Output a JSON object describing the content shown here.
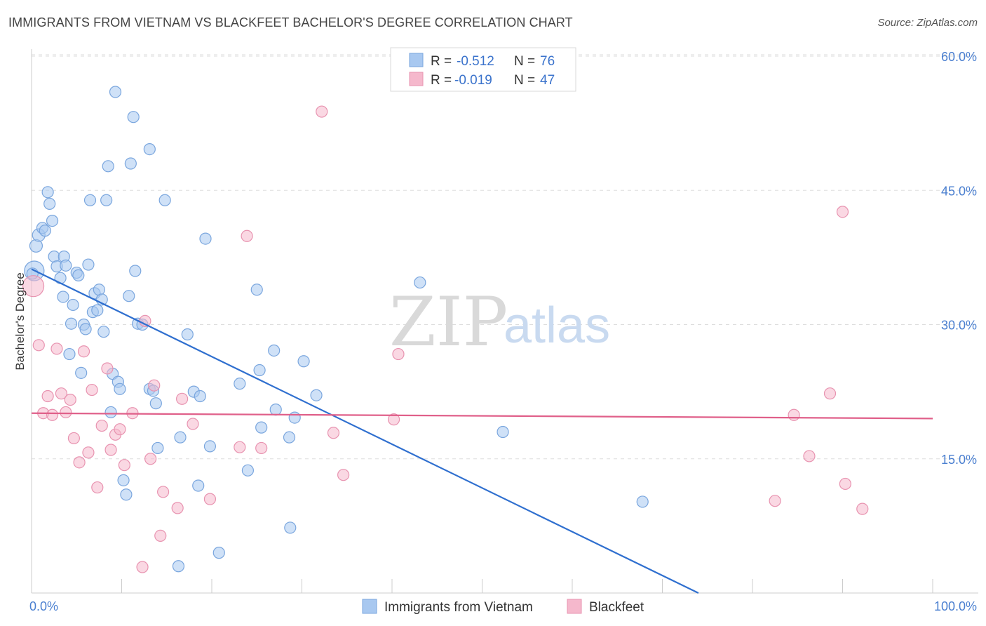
{
  "title": "IMMIGRANTS FROM VIETNAM VS BLACKFEET BACHELOR'S DEGREE CORRELATION CHART",
  "source": "Source: ZipAtlas.com",
  "watermark": {
    "zip": "ZIP",
    "atlas": "atlas"
  },
  "legend": {
    "rows": [
      {
        "r_label": "R =",
        "r_value": "-0.512",
        "n_label": "N =",
        "n_value": "76"
      },
      {
        "r_label": "R =",
        "r_value": "-0.019",
        "n_label": "N =",
        "n_value": "47"
      }
    ]
  },
  "colors": {
    "blue_fill": "#a8c8f0",
    "blue_stroke": "#7aa6de",
    "blue_line": "#2f6fcf",
    "pink_fill": "#f5b8cc",
    "pink_stroke": "#e893b0",
    "pink_line": "#e0608a",
    "grid": "#dddddd",
    "axis": "#cccccc"
  },
  "chart_data": {
    "type": "scatter",
    "title": "IMMIGRANTS FROM VIETNAM VS BLACKFEET BACHELOR'S DEGREE CORRELATION CHART",
    "xlabel": "",
    "ylabel": "Bachelor's Degree",
    "xlim": [
      0,
      100
    ],
    "ylim": [
      0,
      62
    ],
    "x_tick_labels": [
      "0.0%",
      "100.0%"
    ],
    "y_ticks": [
      15,
      30,
      45,
      60
    ],
    "y_tick_labels": [
      "15.0%",
      "30.0%",
      "45.0%",
      "60.0%"
    ],
    "grid": true,
    "legend_position": "top-center",
    "series": [
      {
        "name": "Immigrants from Vietnam",
        "color": "#a8c8f0",
        "trend": {
          "x": [
            0,
            74
          ],
          "y": [
            36.2,
            0
          ]
        },
        "points": [
          {
            "x": 0.3,
            "y": 36.0,
            "s": 28
          },
          {
            "x": 0.5,
            "y": 38.8,
            "s": 18
          },
          {
            "x": 0.8,
            "y": 40.0,
            "s": 18
          },
          {
            "x": 1.2,
            "y": 40.8,
            "s": 16
          },
          {
            "x": 1.5,
            "y": 40.5,
            "s": 16
          },
          {
            "x": 1.8,
            "y": 44.8,
            "s": 16
          },
          {
            "x": 2.0,
            "y": 43.5,
            "s": 16
          },
          {
            "x": 2.3,
            "y": 41.6,
            "s": 16
          },
          {
            "x": 2.5,
            "y": 37.6,
            "s": 16
          },
          {
            "x": 2.8,
            "y": 36.5,
            "s": 16
          },
          {
            "x": 3.2,
            "y": 35.2,
            "s": 16
          },
          {
            "x": 3.5,
            "y": 33.1,
            "s": 16
          },
          {
            "x": 3.6,
            "y": 37.6,
            "s": 16
          },
          {
            "x": 3.8,
            "y": 36.6,
            "s": 16
          },
          {
            "x": 4.2,
            "y": 26.7,
            "s": 16
          },
          {
            "x": 4.4,
            "y": 30.1,
            "s": 16
          },
          {
            "x": 4.6,
            "y": 32.2,
            "s": 16
          },
          {
            "x": 5.0,
            "y": 35.8,
            "s": 16
          },
          {
            "x": 5.2,
            "y": 35.5,
            "s": 16
          },
          {
            "x": 5.5,
            "y": 24.6,
            "s": 16
          },
          {
            "x": 5.8,
            "y": 30.0,
            "s": 16
          },
          {
            "x": 6.0,
            "y": 29.5,
            "s": 16
          },
          {
            "x": 6.3,
            "y": 36.7,
            "s": 16
          },
          {
            "x": 6.5,
            "y": 43.9,
            "s": 16
          },
          {
            "x": 6.8,
            "y": 31.4,
            "s": 16
          },
          {
            "x": 7.0,
            "y": 33.5,
            "s": 16
          },
          {
            "x": 7.3,
            "y": 31.6,
            "s": 16
          },
          {
            "x": 7.5,
            "y": 33.9,
            "s": 16
          },
          {
            "x": 7.8,
            "y": 32.8,
            "s": 16
          },
          {
            "x": 8.0,
            "y": 29.2,
            "s": 16
          },
          {
            "x": 8.3,
            "y": 43.9,
            "s": 16
          },
          {
            "x": 8.5,
            "y": 47.7,
            "s": 16
          },
          {
            "x": 8.8,
            "y": 20.2,
            "s": 16
          },
          {
            "x": 9.0,
            "y": 24.5,
            "s": 16
          },
          {
            "x": 9.3,
            "y": 56.0,
            "s": 16
          },
          {
            "x": 9.6,
            "y": 23.6,
            "s": 16
          },
          {
            "x": 9.8,
            "y": 22.8,
            "s": 16
          },
          {
            "x": 10.2,
            "y": 12.6,
            "s": 16
          },
          {
            "x": 10.5,
            "y": 11.0,
            "s": 16
          },
          {
            "x": 10.8,
            "y": 33.2,
            "s": 16
          },
          {
            "x": 11.0,
            "y": 48.0,
            "s": 16
          },
          {
            "x": 11.3,
            "y": 53.2,
            "s": 16
          },
          {
            "x": 11.5,
            "y": 36.0,
            "s": 16
          },
          {
            "x": 11.8,
            "y": 30.1,
            "s": 16
          },
          {
            "x": 12.3,
            "y": 30.0,
            "s": 16
          },
          {
            "x": 13.1,
            "y": 49.6,
            "s": 16
          },
          {
            "x": 13.1,
            "y": 22.8,
            "s": 16
          },
          {
            "x": 13.5,
            "y": 22.6,
            "s": 16
          },
          {
            "x": 13.8,
            "y": 21.2,
            "s": 16
          },
          {
            "x": 14.0,
            "y": 16.2,
            "s": 16
          },
          {
            "x": 14.8,
            "y": 43.9,
            "s": 16
          },
          {
            "x": 16.3,
            "y": 3.0,
            "s": 16
          },
          {
            "x": 16.5,
            "y": 17.4,
            "s": 16
          },
          {
            "x": 17.3,
            "y": 28.9,
            "s": 16
          },
          {
            "x": 18.0,
            "y": 22.5,
            "s": 16
          },
          {
            "x": 18.5,
            "y": 12.0,
            "s": 16
          },
          {
            "x": 18.7,
            "y": 22.0,
            "s": 16
          },
          {
            "x": 19.3,
            "y": 39.6,
            "s": 16
          },
          {
            "x": 19.8,
            "y": 16.4,
            "s": 16
          },
          {
            "x": 20.8,
            "y": 4.5,
            "s": 16
          },
          {
            "x": 23.1,
            "y": 23.4,
            "s": 16
          },
          {
            "x": 24.0,
            "y": 13.7,
            "s": 16
          },
          {
            "x": 25.0,
            "y": 33.9,
            "s": 16
          },
          {
            "x": 25.3,
            "y": 24.9,
            "s": 16
          },
          {
            "x": 25.5,
            "y": 18.5,
            "s": 16
          },
          {
            "x": 26.9,
            "y": 27.1,
            "s": 16
          },
          {
            "x": 27.1,
            "y": 20.5,
            "s": 16
          },
          {
            "x": 28.6,
            "y": 17.4,
            "s": 16
          },
          {
            "x": 28.7,
            "y": 7.3,
            "s": 16
          },
          {
            "x": 29.2,
            "y": 19.6,
            "s": 16
          },
          {
            "x": 30.2,
            "y": 25.9,
            "s": 16
          },
          {
            "x": 31.6,
            "y": 22.1,
            "s": 16
          },
          {
            "x": 43.1,
            "y": 34.7,
            "s": 16
          },
          {
            "x": 52.3,
            "y": 18.0,
            "s": 16
          },
          {
            "x": 67.8,
            "y": 10.2,
            "s": 16
          },
          {
            "x": 0.1,
            "y": 35.7,
            "s": 16
          }
        ]
      },
      {
        "name": "Blackfeet",
        "color": "#f5b8cc",
        "trend": {
          "x": [
            0,
            100
          ],
          "y": [
            20.1,
            19.5
          ]
        },
        "points": [
          {
            "x": 0.2,
            "y": 34.3,
            "s": 30
          },
          {
            "x": 0.8,
            "y": 27.7,
            "s": 16
          },
          {
            "x": 1.3,
            "y": 20.1,
            "s": 16
          },
          {
            "x": 1.8,
            "y": 22.0,
            "s": 16
          },
          {
            "x": 2.3,
            "y": 19.9,
            "s": 16
          },
          {
            "x": 2.8,
            "y": 27.3,
            "s": 16
          },
          {
            "x": 3.3,
            "y": 22.3,
            "s": 16
          },
          {
            "x": 3.8,
            "y": 20.2,
            "s": 16
          },
          {
            "x": 4.3,
            "y": 21.6,
            "s": 16
          },
          {
            "x": 4.7,
            "y": 17.3,
            "s": 16
          },
          {
            "x": 5.3,
            "y": 14.6,
            "s": 16
          },
          {
            "x": 5.8,
            "y": 27.0,
            "s": 16
          },
          {
            "x": 6.3,
            "y": 15.7,
            "s": 16
          },
          {
            "x": 6.7,
            "y": 22.7,
            "s": 16
          },
          {
            "x": 7.3,
            "y": 11.8,
            "s": 16
          },
          {
            "x": 7.8,
            "y": 18.7,
            "s": 16
          },
          {
            "x": 8.4,
            "y": 25.1,
            "s": 16
          },
          {
            "x": 8.8,
            "y": 16.0,
            "s": 16
          },
          {
            "x": 9.3,
            "y": 17.7,
            "s": 16
          },
          {
            "x": 9.8,
            "y": 18.3,
            "s": 16
          },
          {
            "x": 10.3,
            "y": 14.3,
            "s": 16
          },
          {
            "x": 11.2,
            "y": 20.1,
            "s": 16
          },
          {
            "x": 12.3,
            "y": 2.9,
            "s": 16
          },
          {
            "x": 12.6,
            "y": 30.4,
            "s": 16
          },
          {
            "x": 13.2,
            "y": 15.0,
            "s": 16
          },
          {
            "x": 13.6,
            "y": 23.2,
            "s": 16
          },
          {
            "x": 14.3,
            "y": 6.4,
            "s": 16
          },
          {
            "x": 14.6,
            "y": 11.3,
            "s": 16
          },
          {
            "x": 16.2,
            "y": 9.5,
            "s": 16
          },
          {
            "x": 16.7,
            "y": 21.7,
            "s": 16
          },
          {
            "x": 17.9,
            "y": 18.9,
            "s": 16
          },
          {
            "x": 19.8,
            "y": 10.5,
            "s": 16
          },
          {
            "x": 23.1,
            "y": 16.3,
            "s": 16
          },
          {
            "x": 23.9,
            "y": 39.9,
            "s": 16
          },
          {
            "x": 25.5,
            "y": 16.2,
            "s": 16
          },
          {
            "x": 32.2,
            "y": 53.8,
            "s": 16
          },
          {
            "x": 33.5,
            "y": 17.9,
            "s": 16
          },
          {
            "x": 34.6,
            "y": 13.2,
            "s": 16
          },
          {
            "x": 40.2,
            "y": 19.4,
            "s": 16
          },
          {
            "x": 40.7,
            "y": 26.7,
            "s": 16
          },
          {
            "x": 82.5,
            "y": 10.3,
            "s": 16
          },
          {
            "x": 84.6,
            "y": 19.9,
            "s": 16
          },
          {
            "x": 86.3,
            "y": 15.3,
            "s": 16
          },
          {
            "x": 88.6,
            "y": 22.3,
            "s": 16
          },
          {
            "x": 90.0,
            "y": 42.6,
            "s": 16
          },
          {
            "x": 90.3,
            "y": 12.2,
            "s": 16
          },
          {
            "x": 92.2,
            "y": 9.4,
            "s": 16
          }
        ]
      }
    ]
  }
}
